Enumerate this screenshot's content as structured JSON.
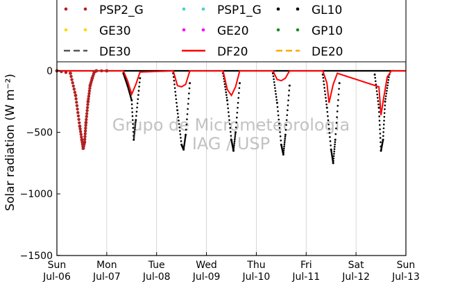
{
  "chart_data": {
    "type": "line",
    "ylabel": "Solar radiation (W m⁻²)",
    "ylim": [
      -1500,
      50
    ],
    "xlim": [
      "2017-07-06 00:00",
      "2017-07-13 00:00"
    ],
    "grid": true,
    "legend_placement": "top",
    "watermark": [
      "Grupo de Micrometeorologia",
      "IAG / USP"
    ],
    "x_ticks": [
      {
        "x": "2017-07-06",
        "day": "Sun",
        "date": "Jul-06"
      },
      {
        "x": "2017-07-07",
        "day": "Mon",
        "date": "Jul-07"
      },
      {
        "x": "2017-07-08",
        "day": "Tue",
        "date": "Jul-08"
      },
      {
        "x": "2017-07-09",
        "day": "Wed",
        "date": "Jul-09"
      },
      {
        "x": "2017-07-10",
        "day": "Thu",
        "date": "Jul-10"
      },
      {
        "x": "2017-07-11",
        "day": "Fri",
        "date": "Jul-11"
      },
      {
        "x": "2017-07-12",
        "day": "Sat",
        "date": "Jul-12"
      },
      {
        "x": "2017-07-13",
        "day": "Sun",
        "date": "Jul-13"
      }
    ],
    "y_ticks": [
      0,
      -500,
      -1000,
      -1500
    ],
    "series": [
      {
        "name": "PSP2_G",
        "style": "dots",
        "color": "#b22222",
        "points": [
          {
            "x": "2017-07-06 00:00",
            "y": 0
          },
          {
            "x": "2017-07-06 06:30",
            "y": -20
          },
          {
            "x": "2017-07-06 09:00",
            "y": -200
          },
          {
            "x": "2017-07-06 11:00",
            "y": -450
          },
          {
            "x": "2017-07-06 12:00",
            "y": -560
          },
          {
            "x": "2017-07-06 12:40",
            "y": -630
          },
          {
            "x": "2017-07-06 13:20",
            "y": -580
          },
          {
            "x": "2017-07-06 14:00",
            "y": -420
          },
          {
            "x": "2017-07-06 15:00",
            "y": -250
          },
          {
            "x": "2017-07-06 16:00",
            "y": -120
          },
          {
            "x": "2017-07-06 17:00",
            "y": -60
          },
          {
            "x": "2017-07-06 18:00",
            "y": -10
          },
          {
            "x": "2017-07-06 19:00",
            "y": 0
          },
          {
            "x": "2017-07-07 00:00",
            "y": 0
          }
        ]
      },
      {
        "name": "PSP1_G",
        "style": "dots",
        "color": "#48d1cc",
        "points": []
      },
      {
        "name": "GL10",
        "style": "dots",
        "color": "#000000",
        "points": [
          {
            "x": "2017-07-07 08:00",
            "y": -20
          },
          {
            "x": "2017-07-07 10:00",
            "y": -120
          },
          {
            "x": "2017-07-07 12:00",
            "y": -240
          },
          {
            "x": "2017-07-07 13:00",
            "y": -560
          },
          {
            "x": "2017-07-07 14:00",
            "y": -400
          },
          {
            "x": "2017-07-07 16:00",
            "y": -60
          },
          {
            "x": "2017-07-08 08:00",
            "y": -20
          },
          {
            "x": "2017-07-08 10:00",
            "y": -320
          },
          {
            "x": "2017-07-08 12:00",
            "y": -600
          },
          {
            "x": "2017-07-08 13:00",
            "y": -640
          },
          {
            "x": "2017-07-08 14:00",
            "y": -520
          },
          {
            "x": "2017-07-08 16:00",
            "y": -100
          },
          {
            "x": "2017-07-09 08:00",
            "y": -20
          },
          {
            "x": "2017-07-09 10:00",
            "y": -240
          },
          {
            "x": "2017-07-09 12:00",
            "y": -560
          },
          {
            "x": "2017-07-09 13:00",
            "y": -650
          },
          {
            "x": "2017-07-09 14:00",
            "y": -500
          },
          {
            "x": "2017-07-09 16:00",
            "y": -100
          },
          {
            "x": "2017-07-10 08:00",
            "y": -20
          },
          {
            "x": "2017-07-10 10:00",
            "y": -260
          },
          {
            "x": "2017-07-10 12:00",
            "y": -600
          },
          {
            "x": "2017-07-10 13:00",
            "y": -680
          },
          {
            "x": "2017-07-10 14:00",
            "y": -520
          },
          {
            "x": "2017-07-10 16:00",
            "y": -120
          },
          {
            "x": "2017-07-11 08:00",
            "y": -30
          },
          {
            "x": "2017-07-11 10:00",
            "y": -300
          },
          {
            "x": "2017-07-11 12:00",
            "y": -640
          },
          {
            "x": "2017-07-11 13:00",
            "y": -750
          },
          {
            "x": "2017-07-11 14:00",
            "y": -560
          },
          {
            "x": "2017-07-11 16:00",
            "y": -100
          },
          {
            "x": "2017-07-12 09:00",
            "y": -30
          },
          {
            "x": "2017-07-12 11:00",
            "y": -300
          },
          {
            "x": "2017-07-12 12:00",
            "y": -650
          },
          {
            "x": "2017-07-12 13:00",
            "y": -560
          },
          {
            "x": "2017-07-12 14:00",
            "y": -250
          },
          {
            "x": "2017-07-12 16:00",
            "y": -30
          }
        ]
      },
      {
        "name": "GE30",
        "style": "dots",
        "color": "#ffd700",
        "points": []
      },
      {
        "name": "GE20",
        "style": "dots",
        "color": "#ff00ff",
        "points": []
      },
      {
        "name": "GP10",
        "style": "dots",
        "color": "#228b22",
        "points": []
      },
      {
        "name": "DE30",
        "style": "dashed",
        "color": "#555555",
        "points": []
      },
      {
        "name": "DF20",
        "style": "solid",
        "color": "#ff0000",
        "points": [
          {
            "x": "2017-07-06 00:00",
            "y": 0
          },
          {
            "x": "2017-07-07 08:00",
            "y": 0
          },
          {
            "x": "2017-07-07 10:00",
            "y": -80
          },
          {
            "x": "2017-07-07 12:00",
            "y": -190
          },
          {
            "x": "2017-07-07 14:00",
            "y": -110
          },
          {
            "x": "2017-07-07 16:00",
            "y": -10
          },
          {
            "x": "2017-07-08 08:00",
            "y": 0
          },
          {
            "x": "2017-07-08 10:00",
            "y": -120
          },
          {
            "x": "2017-07-08 12:00",
            "y": -130
          },
          {
            "x": "2017-07-08 14:00",
            "y": -110
          },
          {
            "x": "2017-07-08 16:00",
            "y": 0
          },
          {
            "x": "2017-07-09 08:00",
            "y": 0
          },
          {
            "x": "2017-07-09 10:00",
            "y": -150
          },
          {
            "x": "2017-07-09 12:00",
            "y": -200
          },
          {
            "x": "2017-07-09 14:00",
            "y": -130
          },
          {
            "x": "2017-07-09 16:00",
            "y": 0
          },
          {
            "x": "2017-07-10 08:00",
            "y": 0
          },
          {
            "x": "2017-07-10 10:00",
            "y": -70
          },
          {
            "x": "2017-07-10 12:00",
            "y": -80
          },
          {
            "x": "2017-07-10 14:00",
            "y": -60
          },
          {
            "x": "2017-07-10 16:00",
            "y": 0
          },
          {
            "x": "2017-07-11 08:00",
            "y": 0
          },
          {
            "x": "2017-07-11 10:00",
            "y": -100
          },
          {
            "x": "2017-07-11 11:00",
            "y": -260
          },
          {
            "x": "2017-07-11 13:00",
            "y": -110
          },
          {
            "x": "2017-07-11 15:00",
            "y": -20
          },
          {
            "x": "2017-07-12 11:00",
            "y": -130
          },
          {
            "x": "2017-07-12 12:00",
            "y": -360
          },
          {
            "x": "2017-07-12 13:00",
            "y": -250
          },
          {
            "x": "2017-07-12 15:00",
            "y": -50
          },
          {
            "x": "2017-07-12 17:00",
            "y": 0
          },
          {
            "x": "2017-07-13 00:00",
            "y": 0
          }
        ]
      },
      {
        "name": "DE20",
        "style": "dashed",
        "color": "#ffa500",
        "points": []
      }
    ]
  }
}
